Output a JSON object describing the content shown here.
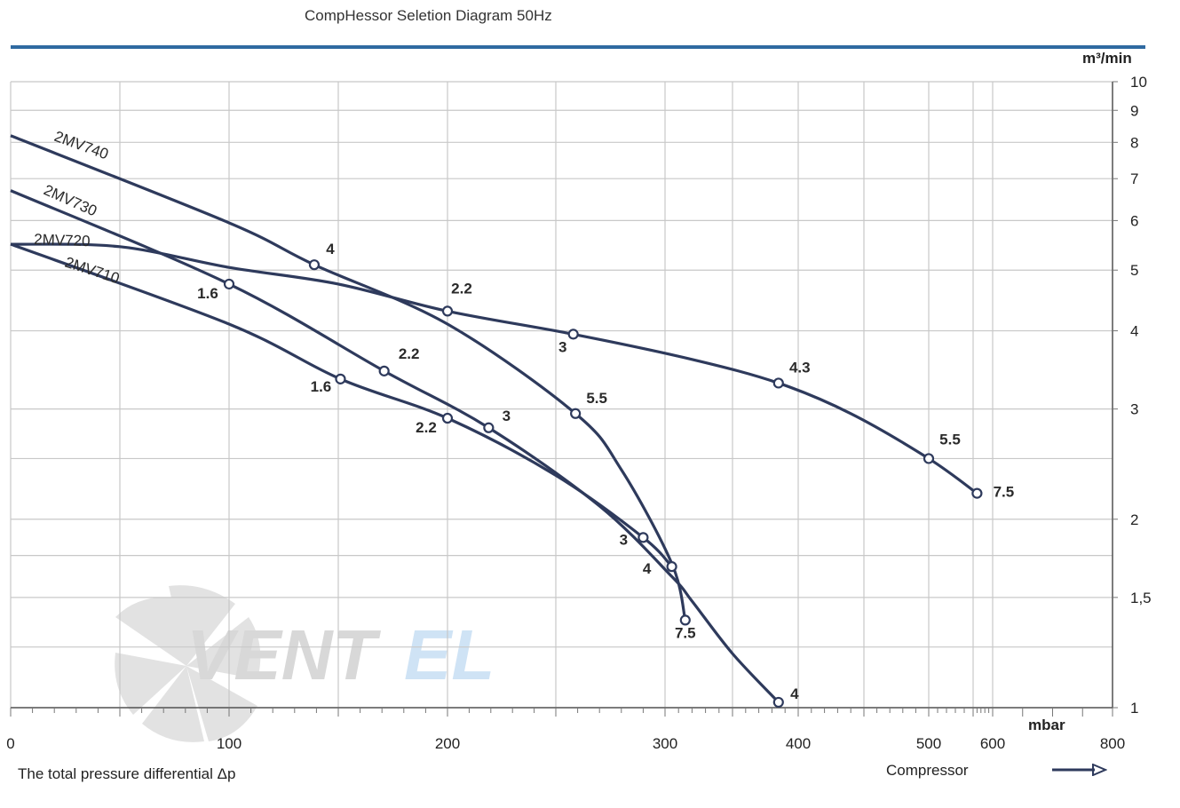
{
  "header": {
    "title": "CompHessor Seletion Diagram 50Hz"
  },
  "footer": {
    "left_label": "The total pressure differential Δp",
    "right_label": "Compressor"
  },
  "colors": {
    "curve": "#2e3a5c",
    "grid": "#c8c8c8",
    "topbar": "#2f6aa1",
    "watermark_gray": "#dcdcdc",
    "watermark_blue": "#cfe3f5"
  },
  "watermark": {
    "text_dark": "VENT",
    "text_light": "EL"
  },
  "chart_data": {
    "type": "line",
    "title": "CompHessor Seletion Diagram 50Hz",
    "xlabel": "The total pressure differential Δp",
    "ylabel": "",
    "x_unit": "mbar",
    "y_unit": "m³/min",
    "y_scale": "log",
    "xlim": [
      0,
      800
    ],
    "ylim": [
      1,
      10
    ],
    "grid": true,
    "x_ticks": [
      "0",
      "100",
      "200",
      "300",
      "400",
      "500",
      "600",
      "800"
    ],
    "y_ticks": [
      "10",
      "9",
      "8",
      "7",
      "6",
      "5",
      "4",
      "3",
      "2",
      "1,5",
      "1"
    ],
    "series": [
      {
        "name": "2MV740",
        "points": [
          [
            0,
            8.2
          ],
          [
            100,
            5.95
          ],
          [
            139,
            5.1
          ],
          [
            200,
            4.1
          ],
          [
            259,
            2.95
          ],
          [
            280,
            2.4
          ],
          [
            305,
            1.7
          ],
          [
            315,
            1.38
          ]
        ],
        "markers": [
          {
            "x": 139,
            "y": 5.1,
            "label": "4"
          },
          {
            "x": 259,
            "y": 2.95,
            "label": "5.5"
          },
          {
            "x": 315,
            "y": 1.38,
            "label": "7.5"
          }
        ]
      },
      {
        "name": "2MV730",
        "points": [
          [
            0,
            6.7
          ],
          [
            100,
            4.75
          ],
          [
            171,
            3.45
          ],
          [
            219,
            2.8
          ],
          [
            270,
            2.1
          ],
          [
            305,
            1.62
          ],
          [
            320,
            1.48
          ],
          [
            350,
            1.22
          ],
          [
            385,
            1.02
          ]
        ],
        "markers": [
          {
            "x": 100,
            "y": 4.75,
            "label": "1.6"
          },
          {
            "x": 171,
            "y": 3.45,
            "label": "2.2"
          },
          {
            "x": 219,
            "y": 2.8,
            "label": "3"
          },
          {
            "x": 385,
            "y": 1.02,
            "label": "4"
          }
        ]
      },
      {
        "name": "2MV720",
        "points": [
          [
            0,
            5.5
          ],
          [
            50,
            5.45
          ],
          [
            100,
            5.05
          ],
          [
            150,
            4.75
          ],
          [
            200,
            4.3
          ],
          [
            258,
            3.95
          ],
          [
            320,
            3.6
          ],
          [
            385,
            3.3
          ],
          [
            440,
            2.95
          ],
          [
            500,
            2.5
          ],
          [
            560,
            2.2
          ]
        ],
        "markers": [
          {
            "x": 200,
            "y": 4.3,
            "label": "2.2"
          },
          {
            "x": 258,
            "y": 3.95,
            "label": "3"
          },
          {
            "x": 385,
            "y": 3.3,
            "label": "4.3"
          },
          {
            "x": 500,
            "y": 2.5,
            "label": "5.5"
          },
          {
            "x": 560,
            "y": 2.2,
            "label": "7.5"
          }
        ]
      },
      {
        "name": "2MV710",
        "points": [
          [
            0,
            5.5
          ],
          [
            100,
            4.1
          ],
          [
            151,
            3.35
          ],
          [
            200,
            2.9
          ],
          [
            250,
            2.35
          ],
          [
            290,
            1.87
          ],
          [
            305,
            1.68
          ]
        ],
        "markers": [
          {
            "x": 151,
            "y": 3.35,
            "label": "1.6"
          },
          {
            "x": 200,
            "y": 2.9,
            "label": "2.2"
          },
          {
            "x": 290,
            "y": 1.87,
            "label": "3"
          },
          {
            "x": 305,
            "y": 1.68,
            "label": "4"
          }
        ]
      }
    ]
  }
}
